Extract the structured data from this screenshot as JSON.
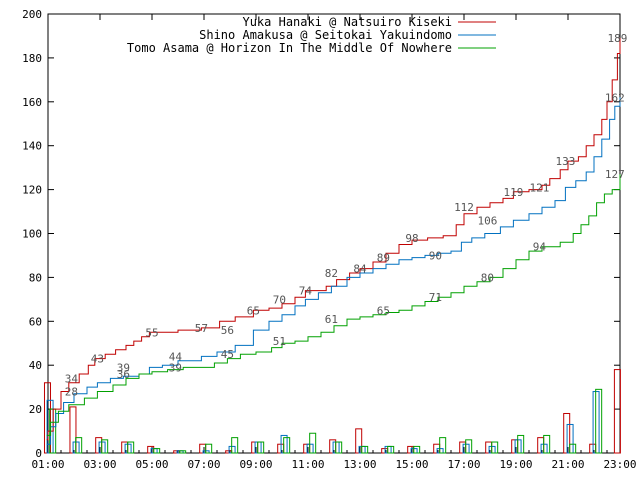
{
  "chart_data": {
    "type": "line",
    "ylim": [
      0,
      200
    ],
    "y_ticks": [
      0,
      20,
      40,
      60,
      80,
      100,
      120,
      140,
      160,
      180,
      200
    ],
    "x_ticks": [
      "01:00",
      "03:00",
      "05:00",
      "07:00",
      "09:00",
      "11:00",
      "13:00",
      "15:00",
      "17:00",
      "19:00",
      "21:00",
      "23:00"
    ],
    "grid": false,
    "legend_position": "top-right",
    "series": [
      {
        "name": "Yuka Hanaki @ Natsuiro Kiseki",
        "color": "#c00000",
        "cumulative": [
          [
            0.95,
            6
          ],
          [
            1.0,
            10
          ],
          [
            1.2,
            20
          ],
          [
            1.5,
            28
          ],
          [
            1.8,
            32
          ],
          [
            2.2,
            36
          ],
          [
            2.55,
            40
          ],
          [
            2.8,
            43
          ],
          [
            3.2,
            45
          ],
          [
            3.6,
            47
          ],
          [
            4.0,
            49
          ],
          [
            4.3,
            51
          ],
          [
            4.6,
            53
          ],
          [
            4.9,
            55
          ],
          [
            5.3,
            55
          ],
          [
            6.0,
            56
          ],
          [
            6.9,
            57
          ],
          [
            7.6,
            60
          ],
          [
            8.2,
            62
          ],
          [
            8.9,
            65
          ],
          [
            9.5,
            66
          ],
          [
            10.0,
            68
          ],
          [
            10.5,
            71
          ],
          [
            10.9,
            74
          ],
          [
            11.3,
            74
          ],
          [
            11.7,
            76
          ],
          [
            12.1,
            79
          ],
          [
            12.6,
            82
          ],
          [
            13.0,
            84
          ],
          [
            13.5,
            87
          ],
          [
            14.0,
            91
          ],
          [
            14.5,
            95
          ],
          [
            15.0,
            97
          ],
          [
            15.6,
            98
          ],
          [
            16.2,
            99
          ],
          [
            16.7,
            104
          ],
          [
            17.0,
            109
          ],
          [
            17.5,
            112
          ],
          [
            18.0,
            114
          ],
          [
            18.5,
            116
          ],
          [
            18.9,
            119
          ],
          [
            19.5,
            120
          ],
          [
            20.0,
            122
          ],
          [
            20.3,
            125
          ],
          [
            20.7,
            129
          ],
          [
            21.0,
            133
          ],
          [
            21.4,
            135
          ],
          [
            21.7,
            140
          ],
          [
            22.0,
            145
          ],
          [
            22.3,
            152
          ],
          [
            22.5,
            160
          ],
          [
            22.7,
            170
          ],
          [
            22.9,
            182
          ],
          [
            23.0,
            189
          ]
        ],
        "point_labels": [
          [
            2.9,
            43,
            "43"
          ],
          [
            5.0,
            55,
            "55"
          ],
          [
            6.9,
            57,
            "57"
          ],
          [
            8.9,
            65,
            "65"
          ],
          [
            10.9,
            74,
            "74"
          ],
          [
            13.0,
            84,
            "84"
          ],
          [
            15.0,
            98,
            "98"
          ],
          [
            17.0,
            112,
            "112"
          ],
          [
            18.9,
            119,
            "119"
          ],
          [
            20.9,
            133,
            "133"
          ],
          [
            22.9,
            189,
            "189"
          ]
        ],
        "hourly": [
          [
            0.98,
            32
          ],
          [
            1.96,
            21
          ],
          [
            2.95,
            7
          ],
          [
            3.95,
            5
          ],
          [
            4.95,
            3
          ],
          [
            5.95,
            1
          ],
          [
            6.95,
            4
          ],
          [
            7.95,
            1
          ],
          [
            8.95,
            5
          ],
          [
            9.95,
            4
          ],
          [
            10.95,
            4
          ],
          [
            11.95,
            6
          ],
          [
            12.95,
            11
          ],
          [
            13.95,
            2
          ],
          [
            14.95,
            3
          ],
          [
            15.95,
            4
          ],
          [
            16.95,
            5
          ],
          [
            17.95,
            5
          ],
          [
            18.95,
            6
          ],
          [
            19.95,
            7
          ],
          [
            20.95,
            18
          ],
          [
            21.95,
            4
          ],
          [
            22.9,
            38
          ]
        ]
      },
      {
        "name": "Shino Amakusa @ Seitokai Yakuindomo",
        "color": "#0070c0",
        "cumulative": [
          [
            0.95,
            4
          ],
          [
            1.1,
            12
          ],
          [
            1.3,
            18
          ],
          [
            1.6,
            23
          ],
          [
            2.0,
            27
          ],
          [
            2.5,
            30
          ],
          [
            2.9,
            32
          ],
          [
            3.4,
            34
          ],
          [
            3.9,
            35
          ],
          [
            4.5,
            36
          ],
          [
            4.9,
            39
          ],
          [
            5.4,
            40
          ],
          [
            6.0,
            42
          ],
          [
            6.9,
            44
          ],
          [
            7.5,
            46
          ],
          [
            8.2,
            49
          ],
          [
            8.9,
            56
          ],
          [
            9.5,
            60
          ],
          [
            10.0,
            63
          ],
          [
            10.5,
            67
          ],
          [
            10.9,
            70
          ],
          [
            11.4,
            73
          ],
          [
            11.9,
            76
          ],
          [
            12.5,
            80
          ],
          [
            13.0,
            82
          ],
          [
            13.5,
            84
          ],
          [
            14.0,
            86
          ],
          [
            14.5,
            88
          ],
          [
            15.0,
            89
          ],
          [
            15.5,
            90
          ],
          [
            16.0,
            91
          ],
          [
            16.5,
            92
          ],
          [
            16.9,
            96
          ],
          [
            17.3,
            98
          ],
          [
            17.8,
            100
          ],
          [
            18.4,
            103
          ],
          [
            18.9,
            106
          ],
          [
            19.5,
            109
          ],
          [
            20.0,
            112
          ],
          [
            20.5,
            115
          ],
          [
            20.9,
            121
          ],
          [
            21.3,
            124
          ],
          [
            21.7,
            128
          ],
          [
            22.0,
            135
          ],
          [
            22.3,
            143
          ],
          [
            22.6,
            152
          ],
          [
            22.8,
            158
          ],
          [
            23.0,
            162
          ]
        ],
        "point_labels": [
          [
            1.9,
            34,
            "34"
          ],
          [
            3.9,
            39,
            "39"
          ],
          [
            5.9,
            44,
            "44"
          ],
          [
            7.9,
            56,
            "56"
          ],
          [
            9.9,
            70,
            "70"
          ],
          [
            11.9,
            82,
            "82"
          ],
          [
            13.9,
            89,
            "89"
          ],
          [
            15.9,
            90,
            "90"
          ],
          [
            17.9,
            106,
            "106"
          ],
          [
            19.9,
            121,
            "121"
          ],
          [
            22.8,
            162,
            "162"
          ]
        ],
        "hourly": [
          [
            1.08,
            24
          ],
          [
            2.08,
            5
          ],
          [
            3.08,
            5
          ],
          [
            4.08,
            4
          ],
          [
            5.08,
            2
          ],
          [
            6.08,
            1
          ],
          [
            7.08,
            1
          ],
          [
            8.08,
            3
          ],
          [
            9.08,
            5
          ],
          [
            10.08,
            8
          ],
          [
            11.08,
            4
          ],
          [
            12.08,
            5
          ],
          [
            13.08,
            3
          ],
          [
            14.08,
            3
          ],
          [
            15.08,
            2
          ],
          [
            16.08,
            2
          ],
          [
            17.08,
            4
          ],
          [
            18.08,
            3
          ],
          [
            19.08,
            6
          ],
          [
            20.08,
            4
          ],
          [
            21.08,
            13
          ],
          [
            22.08,
            28
          ]
        ]
      },
      {
        "name": "Tomo Asama @ Horizon In The Middle Of Nowhere",
        "color": "#00a000",
        "cumulative": [
          [
            0.95,
            8
          ],
          [
            1.1,
            14
          ],
          [
            1.4,
            19
          ],
          [
            1.8,
            22
          ],
          [
            2.4,
            25
          ],
          [
            2.9,
            28
          ],
          [
            3.5,
            31
          ],
          [
            4.0,
            34
          ],
          [
            4.5,
            36
          ],
          [
            5.0,
            37
          ],
          [
            5.6,
            38
          ],
          [
            6.2,
            39
          ],
          [
            6.9,
            39
          ],
          [
            7.4,
            41
          ],
          [
            7.9,
            43
          ],
          [
            8.4,
            45
          ],
          [
            9.0,
            46
          ],
          [
            9.6,
            48
          ],
          [
            10.0,
            50
          ],
          [
            10.5,
            51
          ],
          [
            11.0,
            53
          ],
          [
            11.5,
            55
          ],
          [
            12.0,
            58
          ],
          [
            12.5,
            61
          ],
          [
            13.0,
            62
          ],
          [
            13.5,
            63
          ],
          [
            14.0,
            64
          ],
          [
            14.5,
            65
          ],
          [
            15.0,
            67
          ],
          [
            15.5,
            69
          ],
          [
            16.0,
            71
          ],
          [
            16.5,
            73
          ],
          [
            17.0,
            76
          ],
          [
            17.5,
            78
          ],
          [
            18.0,
            80
          ],
          [
            18.5,
            84
          ],
          [
            19.0,
            88
          ],
          [
            19.5,
            92
          ],
          [
            20.0,
            94
          ],
          [
            20.7,
            96
          ],
          [
            21.2,
            100
          ],
          [
            21.5,
            104
          ],
          [
            21.8,
            108
          ],
          [
            22.1,
            114
          ],
          [
            22.4,
            118
          ],
          [
            22.7,
            120
          ],
          [
            23.0,
            127
          ]
        ],
        "point_labels": [
          [
            1.9,
            28,
            "28"
          ],
          [
            3.9,
            36,
            "36"
          ],
          [
            5.9,
            39,
            "39"
          ],
          [
            7.9,
            45,
            "45"
          ],
          [
            9.9,
            51,
            "51"
          ],
          [
            11.9,
            61,
            "61"
          ],
          [
            13.9,
            65,
            "65"
          ],
          [
            15.9,
            71,
            "71"
          ],
          [
            17.9,
            80,
            "80"
          ],
          [
            19.9,
            94,
            "94"
          ],
          [
            22.8,
            127,
            "127"
          ]
        ],
        "hourly": [
          [
            1.18,
            20
          ],
          [
            2.18,
            7
          ],
          [
            3.18,
            6
          ],
          [
            4.18,
            5
          ],
          [
            5.18,
            2
          ],
          [
            6.18,
            1
          ],
          [
            7.18,
            4
          ],
          [
            8.18,
            7
          ],
          [
            9.18,
            5
          ],
          [
            10.18,
            7
          ],
          [
            11.18,
            9
          ],
          [
            12.18,
            5
          ],
          [
            13.18,
            3
          ],
          [
            14.18,
            3
          ],
          [
            15.18,
            3
          ],
          [
            16.18,
            7
          ],
          [
            17.18,
            6
          ],
          [
            18.18,
            5
          ],
          [
            19.18,
            8
          ],
          [
            20.18,
            8
          ],
          [
            21.18,
            4
          ],
          [
            22.18,
            29
          ]
        ]
      }
    ]
  }
}
